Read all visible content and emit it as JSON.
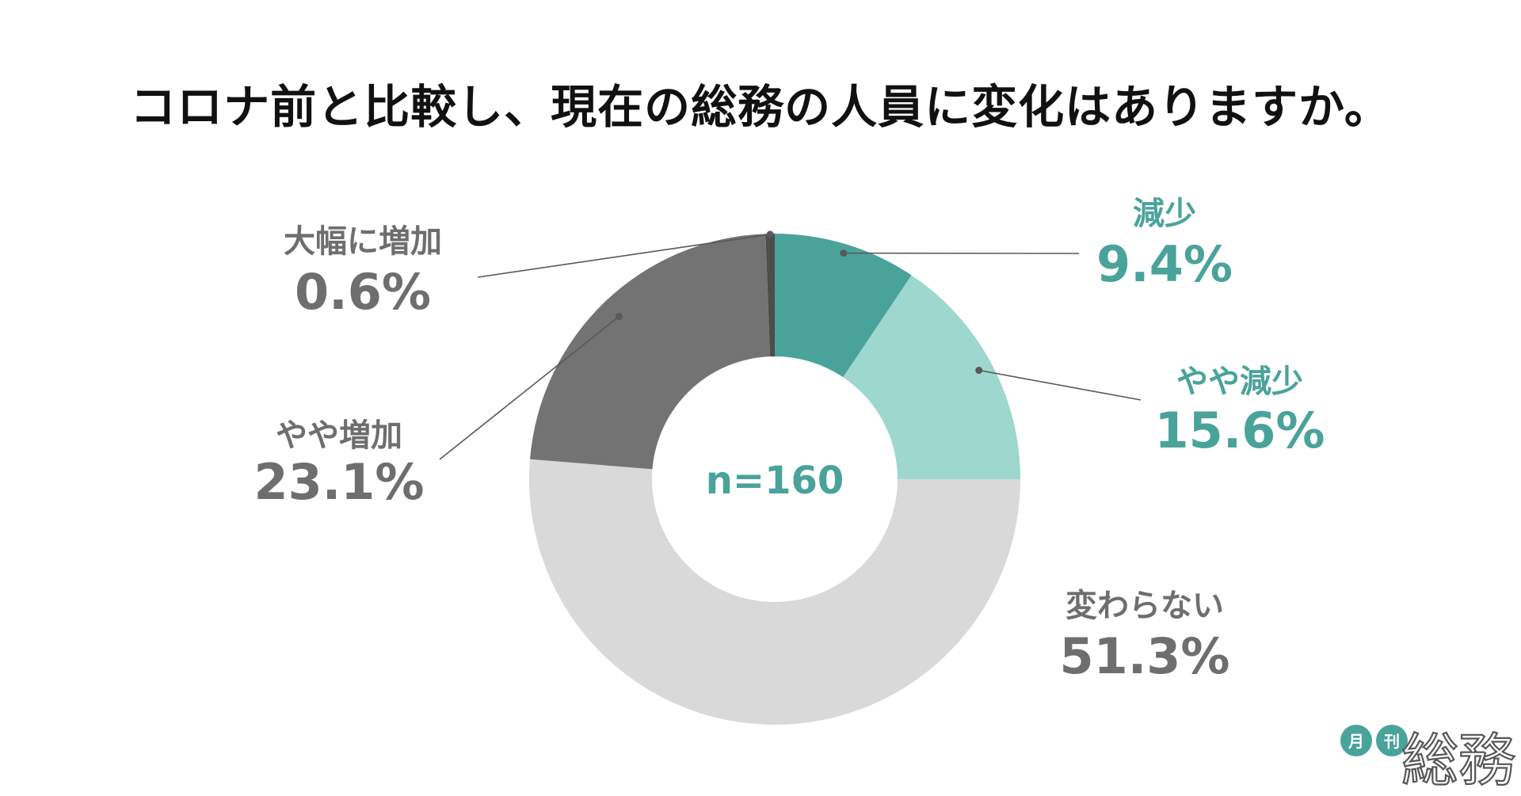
{
  "chart_data": {
    "type": "pie",
    "title": "コロナ前と比較し、現在の総務の人員に変化はありますか。",
    "center_label": "n=160",
    "slices": [
      {
        "label": "減少",
        "value": 9.4,
        "display": "9.4%",
        "color": "#4aa39a",
        "label_color": "#4aa39a"
      },
      {
        "label": "やや減少",
        "value": 15.6,
        "display": "15.6%",
        "color": "#9dd7cd",
        "label_color": "#4aa39a"
      },
      {
        "label": "変わらない",
        "value": 51.3,
        "display": "51.3%",
        "color": "#d9d9d9",
        "label_color": "#6e6e6e"
      },
      {
        "label": "やや増加",
        "value": 23.1,
        "display": "23.1%",
        "color": "#737373",
        "label_color": "#6e6e6e"
      },
      {
        "label": "大幅に増加",
        "value": 0.6,
        "display": "0.6%",
        "color": "#4d4d4d",
        "label_color": "#6e6e6e"
      }
    ],
    "legend": "none"
  },
  "logo": {
    "badge_1": "月",
    "badge_2": "刊",
    "name": "総務",
    "badge_color": "#4aa39a"
  }
}
